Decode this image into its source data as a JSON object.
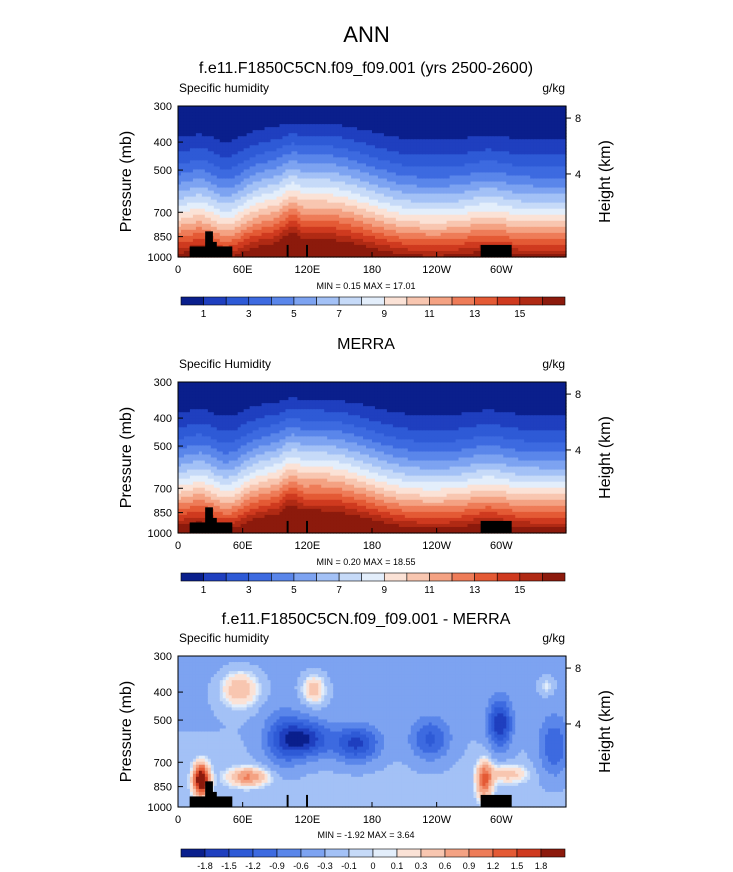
{
  "page": {
    "title": "ANN"
  },
  "chart_data": [
    {
      "type": "heatmap",
      "title": "f.e11.F1850C5CN.f09_f09.001 (yrs 2500-2600)",
      "variable_label": "Specific humidity",
      "units": "g/kg",
      "ylabel": "Pressure (mb)",
      "ylabel_right": "Height (km)",
      "y_ticks": [
        "300",
        "400",
        "500",
        "700",
        "850",
        "1000"
      ],
      "y_ticks_right": [
        "8",
        "4"
      ],
      "x_ticks": [
        "0",
        "60E",
        "120E",
        "180",
        "120W",
        "60W"
      ],
      "stats": "MIN =  0.15  MAX =  17.01",
      "colorbar_labels": [
        "1",
        "3",
        "5",
        "7",
        "9",
        "11",
        "13",
        "15"
      ],
      "levels": [
        0,
        1,
        2,
        3,
        4,
        5,
        6,
        7,
        8,
        9,
        10,
        11,
        12,
        13,
        14,
        15,
        16
      ],
      "colors": [
        "#0a1f8c",
        "#1f3fbf",
        "#2e5ad6",
        "#3d6ae0",
        "#5a86ea",
        "#7da3f1",
        "#a3c1f6",
        "#c6daf8",
        "#e3eefb",
        "#fbe2d6",
        "#f8c6b0",
        "#f4a283",
        "#ee7c58",
        "#e45a35",
        "#cf3a1f",
        "#b02a14",
        "#8c1a0c"
      ],
      "min": 0.15,
      "max": 17.01
    },
    {
      "type": "heatmap",
      "title": "MERRA",
      "variable_label": "Specific Humidity",
      "units": "g/kg",
      "ylabel": "Pressure (mb)",
      "ylabel_right": "Height (km)",
      "y_ticks": [
        "300",
        "400",
        "500",
        "700",
        "850",
        "1000"
      ],
      "y_ticks_right": [
        "8",
        "4"
      ],
      "x_ticks": [
        "0",
        "60E",
        "120E",
        "180",
        "120W",
        "60W"
      ],
      "stats": "MIN =  0.20  MAX =  18.55",
      "colorbar_labels": [
        "1",
        "3",
        "5",
        "7",
        "9",
        "11",
        "13",
        "15"
      ],
      "levels": [
        0,
        1,
        2,
        3,
        4,
        5,
        6,
        7,
        8,
        9,
        10,
        11,
        12,
        13,
        14,
        15,
        16
      ],
      "colors": [
        "#0a1f8c",
        "#1f3fbf",
        "#2e5ad6",
        "#3d6ae0",
        "#5a86ea",
        "#7da3f1",
        "#a3c1f6",
        "#c6daf8",
        "#e3eefb",
        "#fbe2d6",
        "#f8c6b0",
        "#f4a283",
        "#ee7c58",
        "#e45a35",
        "#cf3a1f",
        "#b02a14",
        "#8c1a0c"
      ],
      "min": 0.2,
      "max": 18.55
    },
    {
      "type": "heatmap",
      "title": "f.e11.F1850C5CN.f09_f09.001 - MERRA",
      "variable_label": "Specific humidity",
      "units": "g/kg",
      "ylabel": "Pressure (mb)",
      "ylabel_right": "Height (km)",
      "y_ticks": [
        "300",
        "400",
        "500",
        "700",
        "850",
        "1000"
      ],
      "y_ticks_right": [
        "8",
        "4"
      ],
      "x_ticks": [
        "0",
        "60E",
        "120E",
        "180",
        "120W",
        "60W"
      ],
      "stats": "MIN = -1.92  MAX =  3.64",
      "colorbar_labels": [
        "-1.8",
        "-1.5",
        "-1.2",
        "-0.9",
        "-0.6",
        "-0.3",
        "-0.1",
        "0",
        "0.1",
        "0.3",
        "0.6",
        "0.9",
        "1.2",
        "1.5",
        "1.8"
      ],
      "levels": [
        -2.1,
        -1.8,
        -1.5,
        -1.2,
        -0.9,
        -0.6,
        -0.3,
        -0.1,
        0,
        0.1,
        0.3,
        0.6,
        0.9,
        1.2,
        1.5,
        1.8
      ],
      "colors": [
        "#0a1f8c",
        "#1f3fbf",
        "#2e5ad6",
        "#3d6ae0",
        "#5a86ea",
        "#7da3f1",
        "#a3c1f6",
        "#c6daf8",
        "#e3eefb",
        "#fbe2d6",
        "#f8c6b0",
        "#f4a283",
        "#ee7c58",
        "#e45a35",
        "#cf3a1f",
        "#8c1a0c"
      ],
      "min": -1.92,
      "max": 3.64
    }
  ]
}
